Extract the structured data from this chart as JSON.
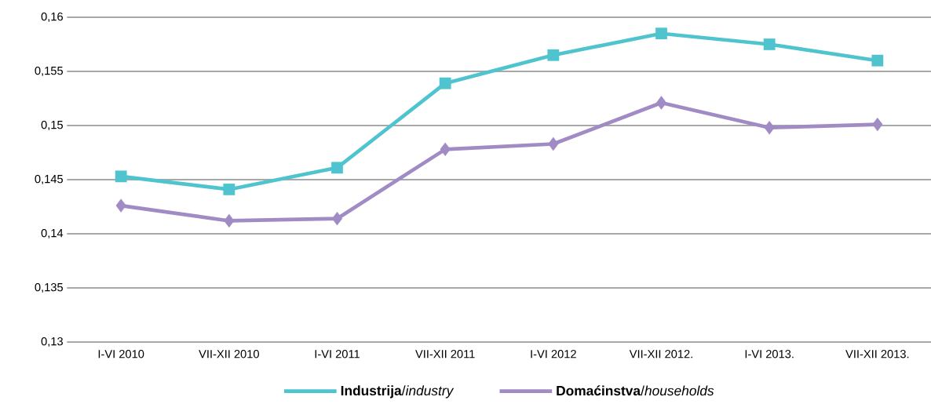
{
  "chart_data": {
    "type": "line",
    "categories": [
      "I-VI 2010",
      "VII-XII 2010",
      "I-VI 2011",
      "VII-XII 2011",
      "I-VI 2012",
      "VII-XII 2012.",
      "I-VI 2013.",
      "VII-XII 2013."
    ],
    "series": [
      {
        "name": "**Industrija**/*industry*",
        "color": "#4fc4cf",
        "marker": "square",
        "values": [
          0.1453,
          0.1441,
          0.1461,
          0.1539,
          0.1565,
          0.1585,
          0.1575,
          0.156
        ]
      },
      {
        "name": "**Domaćinstva**/*households*",
        "color": "#a08bc4",
        "marker": "diamond",
        "values": [
          0.1426,
          0.1412,
          0.1414,
          0.1478,
          0.1483,
          0.1521,
          0.1498,
          0.1501
        ]
      }
    ],
    "ylim": [
      0.13,
      0.16
    ],
    "yticks": [
      {
        "value": 0.13,
        "label": "0,13"
      },
      {
        "value": 0.135,
        "label": "0,135"
      },
      {
        "value": 0.14,
        "label": "0,14"
      },
      {
        "value": 0.145,
        "label": "0,145"
      },
      {
        "value": 0.15,
        "label": "0,15"
      },
      {
        "value": 0.155,
        "label": "0,155"
      },
      {
        "value": 0.16,
        "label": "0,16"
      }
    ],
    "grid": "y",
    "legend": "bottom"
  }
}
